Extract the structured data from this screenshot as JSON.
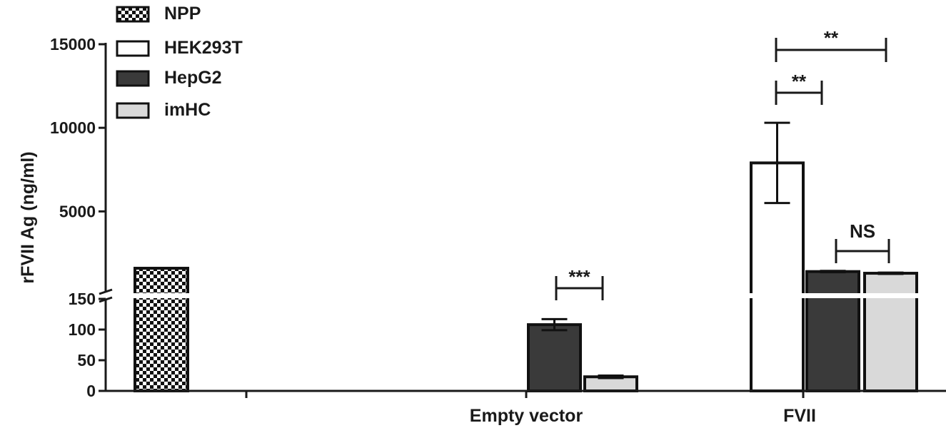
{
  "chart_data": {
    "type": "bar",
    "ylabel": "rFVII Ag (ng/ml)",
    "xlabel": "",
    "categories": [
      "",
      "Empty vector",
      "FVII"
    ],
    "y_axis": {
      "broken": true,
      "lower_segment": {
        "range": [
          0,
          150
        ],
        "ticks": [
          "0",
          "50",
          "100",
          "150"
        ]
      },
      "upper_segment": {
        "range": [
          150,
          15000
        ],
        "ticks": [
          "5000",
          "10000",
          "15000"
        ]
      }
    },
    "legend": {
      "placement": "top-left",
      "entries": [
        {
          "name": "NPP",
          "pattern": "checker"
        },
        {
          "name": "HEK293T",
          "pattern": "white"
        },
        {
          "name": "HepG2",
          "pattern": "dark"
        },
        {
          "name": "imHC",
          "pattern": "light"
        }
      ]
    },
    "series": [
      {
        "name": "NPP",
        "color": "#111111",
        "values": [
          1600,
          null,
          null
        ],
        "errors": [
          null,
          null,
          null
        ]
      },
      {
        "name": "HEK293T",
        "color": "#ffffff",
        "values": [
          null,
          null,
          7900
        ],
        "errors": [
          null,
          null,
          2400
        ]
      },
      {
        "name": "HepG2",
        "color": "#3a3a3a",
        "values": [
          null,
          108,
          1400
        ],
        "errors": [
          null,
          9,
          40
        ]
      },
      {
        "name": "imHC",
        "color": "#d9d9d9",
        "values": [
          null,
          23,
          1300
        ],
        "errors": [
          null,
          2,
          40
        ]
      }
    ],
    "significance": [
      {
        "label": "***",
        "category": "Empty vector",
        "between": [
          "HepG2",
          "imHC"
        ]
      },
      {
        "label": "**",
        "category": "FVII",
        "between": [
          "HEK293T",
          "HepG2"
        ]
      },
      {
        "label": "**",
        "category": "FVII",
        "between": [
          "HEK293T",
          "imHC"
        ]
      },
      {
        "label": "NS",
        "category": "FVII",
        "between": [
          "HepG2",
          "imHC"
        ]
      }
    ]
  }
}
